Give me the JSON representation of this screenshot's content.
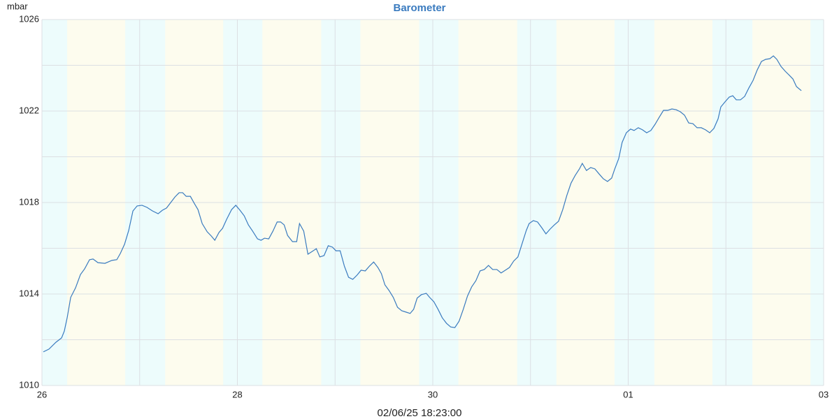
{
  "chart_data": {
    "type": "line",
    "title": "Barometer",
    "y_label": "mbar",
    "footer": "02/06/25 18:23:00",
    "color": "#3a7bbf",
    "title_color": "#3a7bbf",
    "day_color": "#fdfcee",
    "night_color": "#edfcfc",
    "grid": true,
    "xlim": [
      0,
      8
    ],
    "xticks": [
      {
        "value": 0,
        "label": "26"
      },
      {
        "value": 2,
        "label": "28"
      },
      {
        "value": 4,
        "label": "30"
      },
      {
        "value": 6,
        "label": "01"
      },
      {
        "value": 8,
        "label": "03"
      }
    ],
    "minor_xticks": [
      1,
      3,
      5,
      7
    ],
    "ylim": [
      1010,
      1026
    ],
    "yticks": [
      1010,
      1014,
      1018,
      1022,
      1026
    ],
    "minor_yticks": [
      1012,
      1016,
      1020,
      1024
    ],
    "night_bands": [
      [
        0,
        0.258
      ],
      [
        0.852,
        1.261
      ],
      [
        1.855,
        2.256
      ],
      [
        2.858,
        3.259
      ],
      [
        3.861,
        4.262
      ],
      [
        4.864,
        5.265
      ],
      [
        5.86,
        6.268
      ],
      [
        6.862,
        7.271
      ],
      [
        7.865,
        8
      ]
    ],
    "x": [
      0.014,
      0.072,
      0.143,
      0.201,
      0.229,
      0.258,
      0.294,
      0.344,
      0.394,
      0.437,
      0.487,
      0.523,
      0.573,
      0.645,
      0.716,
      0.766,
      0.802,
      0.845,
      0.888,
      0.931,
      0.974,
      1.024,
      1.074,
      1.132,
      1.189,
      1.232,
      1.275,
      1.318,
      1.361,
      1.404,
      1.44,
      1.476,
      1.519,
      1.562,
      1.597,
      1.64,
      1.691,
      1.734,
      1.769,
      1.812,
      1.848,
      1.891,
      1.941,
      1.984,
      2.027,
      2.07,
      2.113,
      2.156,
      2.206,
      2.242,
      2.278,
      2.321,
      2.364,
      2.407,
      2.443,
      2.479,
      2.514,
      2.564,
      2.607,
      2.636,
      2.679,
      2.722,
      2.765,
      2.808,
      2.844,
      2.887,
      2.93,
      2.973,
      3.009,
      3.052,
      3.095,
      3.138,
      3.181,
      3.224,
      3.266,
      3.309,
      3.352,
      3.395,
      3.438,
      3.474,
      3.51,
      3.553,
      3.596,
      3.639,
      3.682,
      3.725,
      3.768,
      3.804,
      3.84,
      3.883,
      3.933,
      3.968,
      4.011,
      4.054,
      4.097,
      4.14,
      4.183,
      4.226,
      4.269,
      4.312,
      4.355,
      4.398,
      4.441,
      4.484,
      4.527,
      4.57,
      4.613,
      4.656,
      4.699,
      4.742,
      4.785,
      4.828,
      4.871,
      4.914,
      4.957,
      4.986,
      5.029,
      5.072,
      5.115,
      5.158,
      5.201,
      5.244,
      5.287,
      5.33,
      5.372,
      5.415,
      5.458,
      5.501,
      5.53,
      5.573,
      5.616,
      5.659,
      5.702,
      5.745,
      5.788,
      5.831,
      5.86,
      5.903,
      5.938,
      5.981,
      6.024,
      6.06,
      6.103,
      6.146,
      6.189,
      6.232,
      6.275,
      6.318,
      6.361,
      6.404,
      6.447,
      6.49,
      6.533,
      6.576,
      6.619,
      6.662,
      6.705,
      6.748,
      6.791,
      6.834,
      6.877,
      6.92,
      6.948,
      6.991,
      7.034,
      7.07,
      7.106,
      7.149,
      7.192,
      7.235,
      7.278,
      7.321,
      7.364,
      7.407,
      7.45,
      7.486,
      7.521,
      7.564,
      7.607,
      7.65,
      7.686,
      7.722,
      7.772
    ],
    "values": [
      1011.47,
      1011.59,
      1011.89,
      1012.08,
      1012.38,
      1012.96,
      1013.85,
      1014.27,
      1014.85,
      1015.1,
      1015.5,
      1015.53,
      1015.37,
      1015.34,
      1015.47,
      1015.5,
      1015.77,
      1016.17,
      1016.78,
      1017.63,
      1017.85,
      1017.88,
      1017.79,
      1017.63,
      1017.51,
      1017.66,
      1017.76,
      1018.0,
      1018.24,
      1018.43,
      1018.43,
      1018.27,
      1018.27,
      1017.94,
      1017.69,
      1017.08,
      1016.72,
      1016.53,
      1016.35,
      1016.69,
      1016.87,
      1017.27,
      1017.69,
      1017.88,
      1017.66,
      1017.42,
      1017.02,
      1016.75,
      1016.41,
      1016.35,
      1016.44,
      1016.41,
      1016.75,
      1017.15,
      1017.15,
      1017.02,
      1016.56,
      1016.29,
      1016.29,
      1017.08,
      1016.75,
      1015.74,
      1015.86,
      1015.98,
      1015.62,
      1015.68,
      1016.11,
      1016.05,
      1015.89,
      1015.89,
      1015.22,
      1014.73,
      1014.64,
      1014.82,
      1015.04,
      1015.01,
      1015.22,
      1015.4,
      1015.16,
      1014.89,
      1014.4,
      1014.15,
      1013.85,
      1013.42,
      1013.27,
      1013.21,
      1013.15,
      1013.33,
      1013.82,
      1013.97,
      1014.03,
      1013.85,
      1013.66,
      1013.33,
      1012.96,
      1012.72,
      1012.56,
      1012.53,
      1012.81,
      1013.33,
      1013.91,
      1014.31,
      1014.58,
      1015.01,
      1015.07,
      1015.25,
      1015.07,
      1015.07,
      1014.92,
      1015.04,
      1015.16,
      1015.44,
      1015.62,
      1016.2,
      1016.78,
      1017.08,
      1017.21,
      1017.15,
      1016.9,
      1016.63,
      1016.84,
      1017.02,
      1017.18,
      1017.69,
      1018.31,
      1018.85,
      1019.19,
      1019.47,
      1019.71,
      1019.4,
      1019.53,
      1019.47,
      1019.25,
      1019.04,
      1018.92,
      1019.07,
      1019.44,
      1019.92,
      1020.63,
      1021.05,
      1021.21,
      1021.15,
      1021.27,
      1021.18,
      1021.05,
      1021.15,
      1021.42,
      1021.73,
      1022.03,
      1022.03,
      1022.09,
      1022.06,
      1021.97,
      1021.82,
      1021.48,
      1021.45,
      1021.27,
      1021.27,
      1021.18,
      1021.05,
      1021.24,
      1021.66,
      1022.18,
      1022.4,
      1022.61,
      1022.67,
      1022.49,
      1022.49,
      1022.64,
      1023.01,
      1023.34,
      1023.8,
      1024.17,
      1024.26,
      1024.29,
      1024.41,
      1024.26,
      1023.95,
      1023.74,
      1023.56,
      1023.4,
      1023.07,
      1022.89
    ]
  }
}
